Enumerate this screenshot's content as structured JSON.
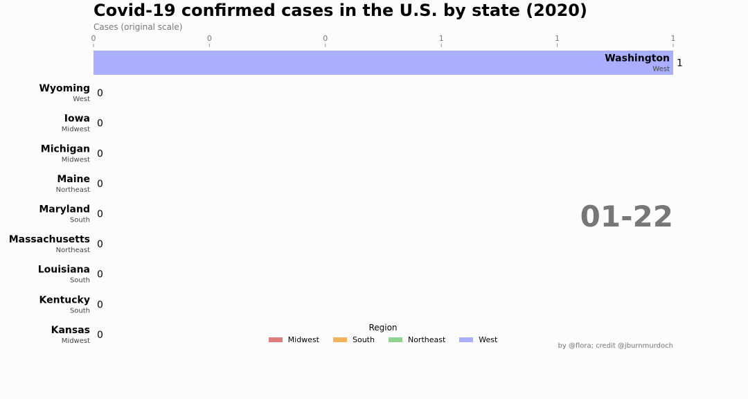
{
  "title": "Covid-19 confirmed cases in the U.S. by state (2020)",
  "axis_label": "Cases (original scale)",
  "date_label": "01-22",
  "credit": "by @flora; credit @jburnmurdoch",
  "legend": {
    "title": "Region",
    "items": [
      {
        "label": "Midwest",
        "color": "#e07b7b"
      },
      {
        "label": "South",
        "color": "#f2b35a"
      },
      {
        "label": "Northeast",
        "color": "#8fd18f"
      },
      {
        "label": "West",
        "color": "#aaaeff"
      }
    ]
  },
  "chart_data": {
    "type": "bar",
    "orientation": "horizontal",
    "x_tick_labels": [
      "0",
      "0",
      "0",
      "1",
      "1",
      "1"
    ],
    "xlim": [
      0,
      1
    ],
    "categories": [
      "Washington",
      "Wyoming",
      "Iowa",
      "Michigan",
      "Maine",
      "Maryland",
      "Massachusetts",
      "Louisiana",
      "Kentucky",
      "Kansas"
    ],
    "regions": [
      "West",
      "West",
      "Midwest",
      "Midwest",
      "Northeast",
      "South",
      "Northeast",
      "South",
      "South",
      "Midwest"
    ],
    "values": [
      1,
      0,
      0,
      0,
      0,
      0,
      0,
      0,
      0,
      0
    ],
    "value_labels": [
      "1",
      "0",
      "0",
      "0",
      "0",
      "0",
      "0",
      "0",
      "0",
      "0"
    ],
    "grid": false,
    "legend_position": "bottom-center"
  }
}
